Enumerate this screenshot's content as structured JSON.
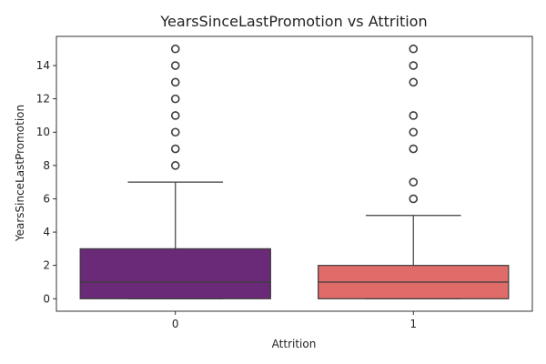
{
  "chart_data": {
    "type": "box",
    "title": "YearsSinceLastPromotion vs Attrition",
    "xlabel": "Attrition",
    "ylabel": "YearsSinceLastPromotion",
    "categories": [
      "0",
      "1"
    ],
    "ylim": [
      -0.75,
      15.75
    ],
    "yticks": [
      0,
      2,
      4,
      6,
      8,
      10,
      12,
      14
    ],
    "grid": false,
    "legend": "none",
    "boxes": [
      {
        "category": "0",
        "color": "#6b2a78",
        "q1": 0,
        "median": 1,
        "q3": 3,
        "whisker_low": 0,
        "whisker_high": 7,
        "outliers": [
          8,
          9,
          10,
          11,
          12,
          13,
          14,
          15
        ]
      },
      {
        "category": "1",
        "color": "#e06c6a",
        "q1": 0,
        "median": 1,
        "q3": 2,
        "whisker_low": 0,
        "whisker_high": 5,
        "outliers": [
          6,
          7,
          9,
          10,
          11,
          13,
          14,
          15
        ]
      }
    ]
  }
}
